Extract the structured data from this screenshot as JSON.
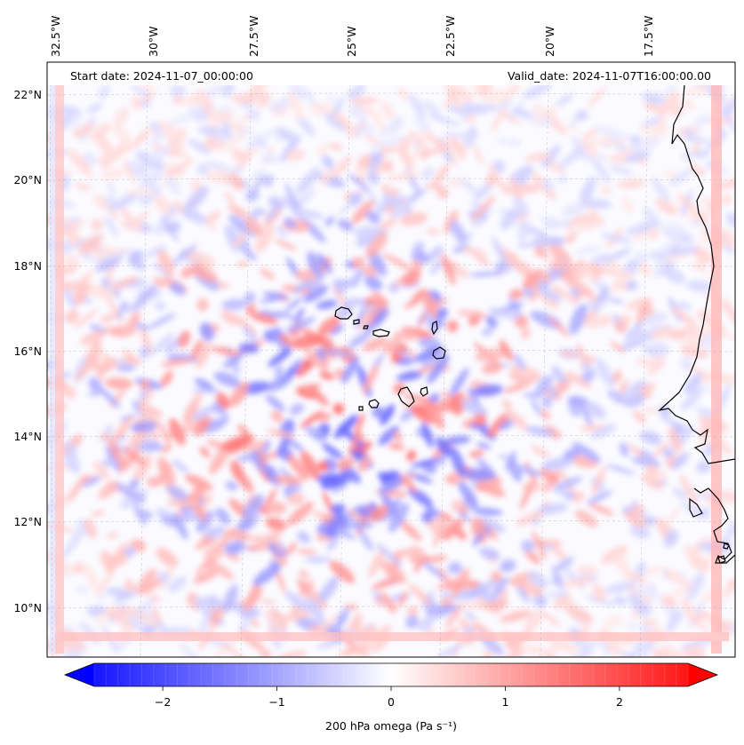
{
  "map": {
    "start_date": "Start date: 2024-11-07_00:00:00",
    "valid_date": "Valid_date: 2024-11-07T16:00:00.00",
    "lon_labels": [
      "32.5°W",
      "30°W",
      "27.5°W",
      "25°W",
      "22.5°W",
      "20°W",
      "17.5°W"
    ],
    "lat_labels": [
      "22°N",
      "20°N",
      "18°N",
      "16°N",
      "14°N",
      "12°N",
      "10°N"
    ],
    "field": "200 hPa omega",
    "colormap": "bwr",
    "gridlines": true,
    "coastlines": true
  },
  "colorbar": {
    "label": "200 hPa omega (Pa s⁻¹)",
    "ticks": [
      "−2",
      "−1",
      "0",
      "1",
      "2"
    ],
    "tick_values": [
      -2,
      -1,
      0,
      1,
      2
    ],
    "range": [
      -2.6,
      2.6
    ],
    "extend": "both",
    "colors": {
      "min": "#0000ff",
      "mid": "#ffffff",
      "max": "#ff0000"
    }
  }
}
